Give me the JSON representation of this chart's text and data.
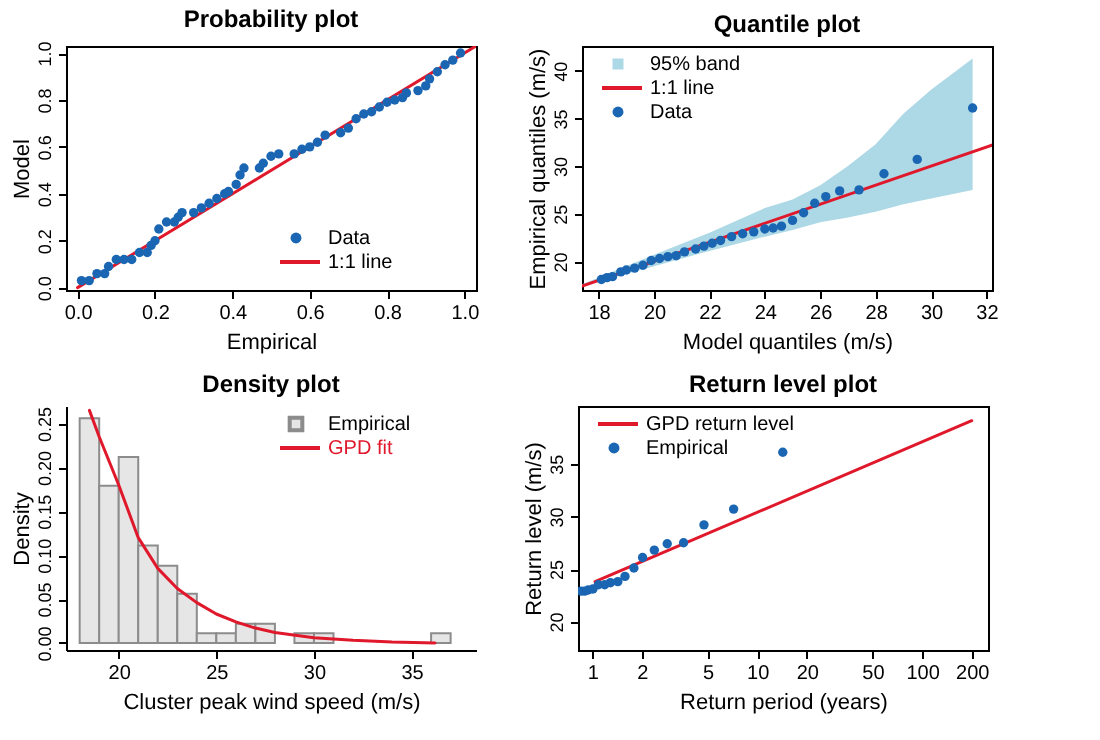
{
  "chart_data": [
    {
      "type": "scatter",
      "title": "Probability plot",
      "xlabel": "Empirical",
      "ylabel": "Model",
      "legend": "bottom right",
      "grid": false,
      "xlim": [
        -0.03,
        1.03
      ],
      "ylim": [
        -0.01,
        1.03
      ],
      "xticks": [
        {
          "value": 0,
          "label": "0.0"
        },
        {
          "value": 0.2,
          "label": "0.2"
        },
        {
          "value": 0.4,
          "label": "0.4"
        },
        {
          "value": 0.6,
          "label": "0.6"
        },
        {
          "value": 0.8,
          "label": "0.8"
        },
        {
          "value": 1,
          "label": "1.0"
        }
      ],
      "yticks": [
        {
          "value": 0,
          "label": "0.0"
        },
        {
          "value": 0.2,
          "label": "0.2"
        },
        {
          "value": 0.4,
          "label": "0.4"
        },
        {
          "value": 0.6,
          "label": "0.6"
        },
        {
          "value": 0.8,
          "label": "0.8"
        },
        {
          "value": 1,
          "label": "1.0"
        }
      ],
      "series": [
        {
          "name": "Data",
          "type": "scatter",
          "marker": "circle",
          "color": "#1a66b3",
          "x": [
            0.01,
            0.03,
            0.05,
            0.07,
            0.08,
            0.1,
            0.12,
            0.14,
            0.16,
            0.18,
            0.19,
            0.2,
            0.21,
            0.23,
            0.25,
            0.26,
            0.27,
            0.3,
            0.32,
            0.34,
            0.36,
            0.38,
            0.39,
            0.41,
            0.42,
            0.43,
            0.47,
            0.48,
            0.5,
            0.52,
            0.56,
            0.58,
            0.6,
            0.62,
            0.64,
            0.68,
            0.7,
            0.72,
            0.74,
            0.76,
            0.78,
            0.8,
            0.82,
            0.84,
            0.85,
            0.88,
            0.9,
            0.91,
            0.93,
            0.95,
            0.97,
            0.99
          ],
          "values": [
            0.03,
            0.03,
            0.06,
            0.06,
            0.09,
            0.12,
            0.12,
            0.12,
            0.15,
            0.15,
            0.18,
            0.2,
            0.25,
            0.28,
            0.28,
            0.3,
            0.32,
            0.32,
            0.34,
            0.36,
            0.38,
            0.4,
            0.41,
            0.44,
            0.48,
            0.51,
            0.51,
            0.53,
            0.56,
            0.57,
            0.57,
            0.59,
            0.6,
            0.62,
            0.65,
            0.66,
            0.68,
            0.72,
            0.74,
            0.75,
            0.77,
            0.79,
            0.8,
            0.81,
            0.83,
            0.84,
            0.86,
            0.89,
            0.92,
            0.95,
            0.97,
            1.0
          ]
        },
        {
          "name": "1:1 line",
          "type": "line",
          "color": "#e0182b",
          "x": [
            0,
            1.03
          ],
          "values": [
            0,
            1.03
          ]
        }
      ]
    },
    {
      "type": "scatter",
      "title": "Quantile plot",
      "xlabel": "Model quantiles (m/s)",
      "ylabel": "Empirical quantiles (m/s)",
      "legend": "top left",
      "grid": false,
      "xlim": [
        17.4,
        32.2
      ],
      "ylim": [
        17,
        42.6
      ],
      "xticks": [
        18,
        20,
        22,
        24,
        26,
        28,
        30,
        32
      ],
      "yticks": [
        20,
        25,
        30,
        35,
        40
      ],
      "series": [
        {
          "name": "95% band",
          "type": "area",
          "color": "#add8e6",
          "x": [
            17.4,
            18,
            20,
            22,
            24,
            25,
            26,
            27,
            28,
            29,
            30,
            31.5
          ],
          "values": [
            null,
            null,
            null,
            null,
            null,
            null,
            null,
            null,
            null,
            null,
            null,
            null
          ],
          "lower": [
            17.4,
            17.9,
            19.5,
            21.1,
            22.6,
            23.3,
            24.1,
            24.6,
            25.2,
            26,
            26.6,
            27.5
          ],
          "upper": [
            17.6,
            18.3,
            20.7,
            23,
            25.6,
            26.5,
            28,
            30,
            32.3,
            35.5,
            38,
            41.3
          ]
        },
        {
          "name": "1:1 line",
          "type": "line",
          "color": "#e0182b",
          "x": [
            17.4,
            32.2
          ],
          "values": [
            17.4,
            32.2
          ]
        },
        {
          "name": "Data",
          "type": "scatter",
          "marker": "circle",
          "color": "#1a66b3",
          "x": [
            18.1,
            18.3,
            18.5,
            18.8,
            19,
            19.3,
            19.6,
            19.9,
            20.2,
            20.5,
            20.8,
            21.1,
            21.5,
            21.8,
            22.1,
            22.4,
            22.8,
            23.2,
            23.6,
            24,
            24.3,
            24.6,
            25,
            25.4,
            25.8,
            26.2,
            26.7,
            27.4,
            28.3,
            29.5,
            31.5
          ],
          "values": [
            18.1,
            18.3,
            18.4,
            18.9,
            19.1,
            19.3,
            19.6,
            20.1,
            20.3,
            20.5,
            20.6,
            21,
            21.3,
            21.6,
            21.9,
            22.2,
            22.6,
            22.9,
            23.1,
            23.4,
            23.5,
            23.7,
            24.3,
            25.1,
            26.1,
            26.8,
            27.4,
            27.5,
            29.2,
            30.7,
            36.1
          ]
        }
      ]
    },
    {
      "type": "histogram",
      "title": "Density plot",
      "xlabel": "Cluster peak wind speed (m/s)",
      "ylabel": "Density",
      "legend": "top right",
      "grid": false,
      "xlim": [
        17.3,
        38.3
      ],
      "ylim": [
        -0.008,
        0.27
      ],
      "xticks": [
        20,
        25,
        30,
        35
      ],
      "yticks": [
        {
          "value": 0,
          "label": "0.00"
        },
        {
          "value": 0.05,
          "label": "0.05"
        },
        {
          "value": 0.1,
          "label": "0.10"
        },
        {
          "value": 0.15,
          "label": "0.15"
        },
        {
          "value": 0.2,
          "label": "0.20"
        },
        {
          "value": 0.25,
          "label": "0.25"
        }
      ],
      "bins": [
        18,
        19,
        20,
        21,
        22,
        23,
        24,
        25,
        26,
        27,
        28,
        29,
        30,
        31,
        32,
        33,
        34,
        35,
        36,
        37
      ],
      "series": [
        {
          "name": "Empirical",
          "type": "histogram",
          "color": "#e6e6e6",
          "values": [
            0.256,
            0.179,
            0.212,
            0.111,
            0.088,
            0.056,
            0.011,
            0.011,
            0.022,
            0.022,
            0,
            0.011,
            0.011,
            0,
            0,
            0,
            0,
            0,
            0.011
          ]
        },
        {
          "name": "GPD fit",
          "type": "line",
          "color": "#e0182b",
          "x": [
            18.5,
            19,
            20,
            21,
            22,
            23,
            24,
            25,
            26,
            27,
            28,
            30,
            32,
            34,
            36.2
          ],
          "values": [
            0.265,
            0.235,
            0.18,
            0.12,
            0.085,
            0.062,
            0.046,
            0.033,
            0.024,
            0.017,
            0.012,
            0.006,
            0.003,
            0.001,
            0
          ]
        }
      ]
    },
    {
      "type": "scatter",
      "title": "Return level plot",
      "xlabel": "Return period (years)",
      "ylabel": "Return level (m/s)",
      "legend": "top left",
      "grid": false,
      "log": "x",
      "xlim": [
        0.82,
        251
      ],
      "ylim": [
        17.3,
        40.5
      ],
      "xticks": [
        1,
        2,
        5,
        10,
        20,
        50,
        100,
        200
      ],
      "yticks": [
        20,
        25,
        30,
        35
      ],
      "series": [
        {
          "name": "GPD return level",
          "type": "line",
          "color": "#e0182b",
          "x": [
            1.04,
            200
          ],
          "values": [
            23.8,
            39.1
          ]
        },
        {
          "name": "Empirical",
          "type": "scatter",
          "marker": "circle",
          "color": "#1a66b3",
          "x": [
            0.856,
            0.9,
            0.945,
            1.01,
            1.09,
            1.19,
            1.29,
            1.43,
            1.58,
            1.79,
            2.02,
            2.38,
            2.85,
            3.58,
            4.76,
            7.2,
            14.3
          ],
          "values": [
            22.9,
            22.9,
            23,
            23.1,
            23.5,
            23.5,
            23.7,
            23.8,
            24.3,
            25.1,
            26.1,
            26.8,
            27.4,
            27.5,
            29.2,
            30.7,
            36.1
          ]
        }
      ]
    }
  ]
}
